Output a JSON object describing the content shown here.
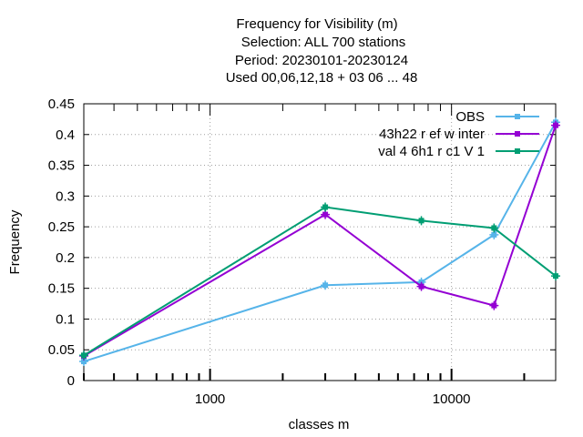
{
  "chart_data": {
    "type": "line",
    "title_lines": [
      "Frequency  for Visibility (m)",
      "Selection: ALL    700 stations",
      "Period: 20230101-20230124",
      "Used  00,06,12,18  + 03 06 ... 48"
    ],
    "xlabel": "classes m",
    "ylabel": "Frequency",
    "x_scale": "log",
    "xlim": [
      300,
      27000
    ],
    "ylim": [
      0,
      0.45
    ],
    "x_ticks": [
      {
        "value": 1000,
        "label": "1000"
      },
      {
        "value": 10000,
        "label": "10000"
      }
    ],
    "y_ticks": [
      {
        "value": 0,
        "label": "0"
      },
      {
        "value": 0.05,
        "label": "0.05"
      },
      {
        "value": 0.1,
        "label": "0.1"
      },
      {
        "value": 0.15,
        "label": "0.15"
      },
      {
        "value": 0.2,
        "label": "0.2"
      },
      {
        "value": 0.25,
        "label": "0.25"
      },
      {
        "value": 0.3,
        "label": "0.3"
      },
      {
        "value": 0.35,
        "label": "0.35"
      },
      {
        "value": 0.4,
        "label": "0.4"
      },
      {
        "value": 0.45,
        "label": "0.45"
      }
    ],
    "grid": true,
    "legend_position": "top-right",
    "x": [
      300,
      3000,
      7500,
      15000,
      27000
    ],
    "series": [
      {
        "name": "OBS",
        "color": "#56b4e9",
        "values": [
          0.031,
          0.155,
          0.16,
          0.237,
          0.42
        ]
      },
      {
        "name": "43h22 r ef w inter",
        "color": "#9400d3",
        "values": [
          0.04,
          0.27,
          0.153,
          0.122,
          0.415
        ]
      },
      {
        "name": "val 4 6h1 r c1 V 1",
        "color": "#009e73",
        "values": [
          0.041,
          0.282,
          0.26,
          0.248,
          0.17
        ]
      }
    ]
  }
}
